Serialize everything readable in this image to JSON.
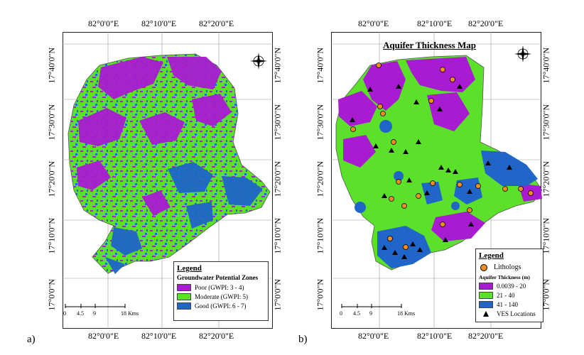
{
  "colors": {
    "poor": "#a81bd1",
    "moderate": "#5be12a",
    "good": "#1f66c8",
    "low_thickness": "#a81bd1",
    "mid_thickness": "#5be12a",
    "high_thickness": "#1f66c8",
    "litholog_fill": "#f28c1c",
    "ves_marker": "#000000"
  },
  "panel_a": {
    "label": "a)",
    "top_ticks": [
      "82°0'0\"E",
      "82°10'0\"E",
      "82°20'0\"E"
    ],
    "bottom_ticks": [
      "82°0'0\"E",
      "82°10'0\"E",
      "82°20'0\"E"
    ],
    "left_ticks": [
      "17°40'0\"N",
      "17°30'0\"N",
      "17°20'0\"N",
      "17°10'0\"N",
      "17°0'0\"N"
    ],
    "right_ticks": [
      "17°40'0\"N",
      "17°30'0\"N",
      "17°20'0\"N",
      "17°10'0\"N",
      "17°0'0\"N"
    ],
    "north_arrow_icon": "compass-rose-icon",
    "legend": {
      "title": "Legend",
      "subtitle": "Groundwater Potential Zones",
      "items": [
        {
          "label": "Poor (GWPI: 3 - 4)",
          "color": "#a81bd1"
        },
        {
          "label": "Moderate (GWPI: 5)",
          "color": "#5be12a"
        },
        {
          "label": "Good (GWPI: 6 - 7)",
          "color": "#1f66c8"
        }
      ]
    },
    "scale": {
      "labels": [
        "0",
        "4.5",
        "9",
        "18 Kms"
      ]
    }
  },
  "panel_b": {
    "label": "b)",
    "title": "Aquifer Thickness Map",
    "top_ticks": [
      "82°0'0\"E",
      "82°10'0\"E",
      "82°20'0\"E"
    ],
    "bottom_ticks": [
      "82°0'0\"E",
      "82°10'0\"E",
      "82°20'0\"E"
    ],
    "left_ticks": [
      "17°40'0\"N",
      "17°30'0\"N",
      "17°20'0\"N",
      "17°10'0\"N",
      "17°0'0\"N"
    ],
    "right_ticks": [
      "17°40'0\"N",
      "17°30'0\"N",
      "17°20'0\"N",
      "17°10'0\"N",
      "17°0'0\"N"
    ],
    "north_arrow_icon": "compass-rose-icon",
    "legend": {
      "title": "Legend",
      "litholog_label": "Lithologs",
      "subtitle": "Aquifer Thickness (m)",
      "items": [
        {
          "label": "0.0039 - 20",
          "color": "#a81bd1"
        },
        {
          "label": "21 - 40",
          "color": "#5be12a"
        },
        {
          "label": "41 - 140",
          "color": "#1f66c8"
        }
      ],
      "ves_label": "VES Locations"
    },
    "scale": {
      "labels": [
        "0",
        "4.5",
        "9",
        "18 Kms"
      ]
    }
  }
}
